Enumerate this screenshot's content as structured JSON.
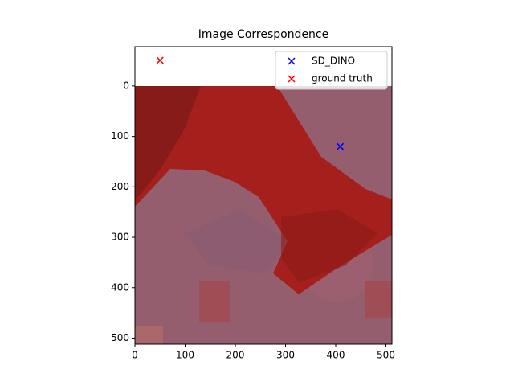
{
  "chart_data": {
    "type": "scatter",
    "title": "Image Correspondence",
    "series": [
      {
        "name": "SD_DINO",
        "color": "#0000ff",
        "x": [
          409
        ],
        "y": [
          120
        ]
      },
      {
        "name": "ground truth",
        "color": "#ff0000",
        "x": [
          50
        ],
        "y": [
          -51
        ]
      }
    ],
    "xlim": [
      0,
      512
    ],
    "ylim": [
      512,
      -78
    ],
    "xticks": [
      0,
      100,
      200,
      300,
      400,
      500
    ],
    "yticks": [
      0,
      100,
      200,
      300,
      400,
      500
    ],
    "legend": "upper right",
    "marker": "x"
  }
}
